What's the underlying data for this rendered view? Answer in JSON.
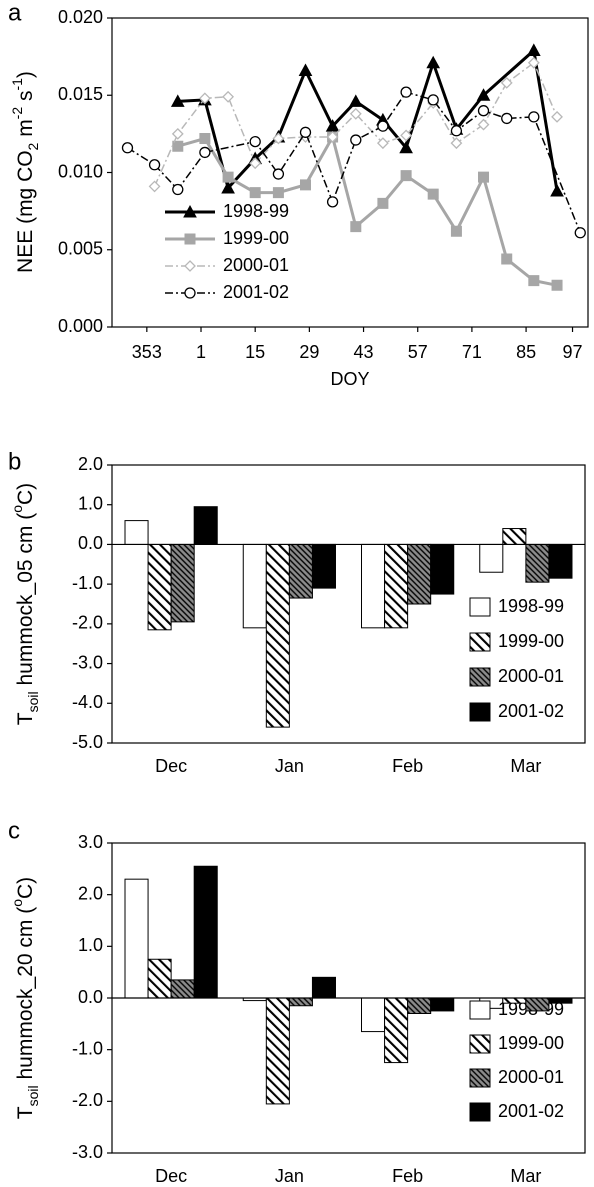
{
  "chart_data": [
    {
      "type": "line",
      "panel_label": "a",
      "ylabel": [
        "NEE (mg CO",
        "2",
        " m",
        "-2",
        " s",
        "-1",
        ")"
      ],
      "xlabel": "DOY",
      "xlim": [
        -22,
        101
      ],
      "xticks": [
        {
          "value": -13,
          "label": "353"
        },
        1,
        15,
        29,
        43,
        57,
        71,
        85,
        97
      ],
      "ylim": [
        0,
        0.02
      ],
      "yticks": [
        {
          "value": 0,
          "label": "0.000"
        },
        {
          "value": 0.005,
          "label": "0.005"
        },
        {
          "value": 0.01,
          "label": "0.010"
        },
        {
          "value": 0.015,
          "label": "0.015"
        },
        {
          "value": 0.02,
          "label": "0.020"
        }
      ],
      "series": [
        {
          "name": "1998-99",
          "color": "#000000",
          "width": 3,
          "dash": "none",
          "marker": "triangle",
          "x": [
            -5,
            2,
            8,
            15,
            21,
            28,
            35,
            41,
            48,
            54,
            61,
            67,
            74,
            87,
            93
          ],
          "values": [
            0.0146,
            0.0147,
            0.009,
            0.0109,
            0.0123,
            0.0166,
            0.013,
            0.0146,
            0.0134,
            0.0116,
            0.0171,
            0.0128,
            0.015,
            0.0179,
            0.0088
          ]
        },
        {
          "name": "1999-00",
          "color": "#a6a6a6",
          "width": 3,
          "dash": "none",
          "marker": "square",
          "x": [
            -5,
            2,
            8,
            15,
            21,
            28,
            35,
            41,
            48,
            54,
            61,
            67,
            74,
            80,
            87,
            93
          ],
          "values": [
            0.0117,
            0.0122,
            0.0097,
            0.0087,
            0.0087,
            0.0092,
            0.0123,
            0.0065,
            0.008,
            0.0098,
            0.0086,
            0.0062,
            0.0097,
            0.0044,
            0.003,
            0.0027
          ]
        },
        {
          "name": "2000-01",
          "color": "#b8b8b8",
          "width": 1.5,
          "dash": "8 3 2 3",
          "marker": "diamond",
          "x": [
            -11,
            -5,
            2,
            8,
            15,
            21,
            28,
            35,
            41,
            48,
            54,
            61,
            67,
            74,
            80,
            87,
            93
          ],
          "values": [
            0.0091,
            0.0125,
            0.0148,
            0.0149,
            0.0106,
            0.0122,
            0.0123,
            0.0123,
            0.0138,
            0.0119,
            0.0124,
            0.0145,
            0.0119,
            0.0131,
            0.0158,
            0.0171,
            0.0136
          ]
        },
        {
          "name": "2001-02",
          "color": "#000000",
          "width": 1.5,
          "dash": "8 3 2 3",
          "marker": "circle",
          "x": [
            -18,
            -11,
            -5,
            2,
            15,
            21,
            28,
            35,
            41,
            48,
            54,
            61,
            67,
            74,
            80,
            87,
            99
          ],
          "values": [
            0.0116,
            0.0105,
            0.0089,
            0.0113,
            0.012,
            0.0099,
            0.0126,
            0.0081,
            0.0121,
            0.013,
            0.0152,
            0.0147,
            0.0127,
            0.014,
            0.0135,
            0.0136,
            0.0061
          ]
        }
      ]
    },
    {
      "type": "bar",
      "panel_label": "b",
      "ylabel": [
        "T",
        "soil",
        " hummock_05 cm (",
        "o",
        "C)"
      ],
      "categories": [
        "Dec",
        "Jan",
        "Feb",
        "Mar"
      ],
      "ylim": [
        -5,
        2
      ],
      "yticks": [
        {
          "value": -5,
          "label": "-5.0"
        },
        {
          "value": -4,
          "label": "-4.0"
        },
        {
          "value": -3,
          "label": "-3.0"
        },
        {
          "value": -2,
          "label": "-2.0"
        },
        {
          "value": -1,
          "label": "-1.0"
        },
        {
          "value": 0,
          "label": "0.0"
        },
        {
          "value": 1,
          "label": "1.0"
        },
        {
          "value": 2,
          "label": "2.0"
        }
      ],
      "series": [
        {
          "name": "1998-99",
          "fill": "white",
          "values": [
            0.6,
            -2.1,
            -2.1,
            -0.7
          ]
        },
        {
          "name": "1999-00",
          "fill": "hatch",
          "values": [
            -2.15,
            -4.6,
            -2.1,
            0.4
          ]
        },
        {
          "name": "2000-01",
          "fill": "dense-hatch",
          "values": [
            -1.95,
            -1.35,
            -1.5,
            -0.95
          ]
        },
        {
          "name": "2001-02",
          "fill": "black",
          "values": [
            0.95,
            -1.1,
            -1.25,
            -0.85
          ]
        }
      ]
    },
    {
      "type": "bar",
      "panel_label": "c",
      "ylabel": [
        "T",
        "soil",
        " hummock_20 cm (",
        "o",
        "C)"
      ],
      "categories": [
        "Dec",
        "Jan",
        "Feb",
        "Mar"
      ],
      "ylim": [
        -3,
        3
      ],
      "yticks": [
        {
          "value": -3,
          "label": "-3.0"
        },
        {
          "value": -2,
          "label": "-2.0"
        },
        {
          "value": -1,
          "label": "-1.0"
        },
        {
          "value": 0,
          "label": "0.0"
        },
        {
          "value": 1,
          "label": "1.0"
        },
        {
          "value": 2,
          "label": "2.0"
        },
        {
          "value": 3,
          "label": "3.0"
        }
      ],
      "series": [
        {
          "name": "1998-99",
          "fill": "white",
          "values": [
            2.3,
            -0.05,
            -0.65,
            -0.2
          ]
        },
        {
          "name": "1999-00",
          "fill": "hatch",
          "values": [
            0.75,
            -2.05,
            -1.25,
            -0.1
          ]
        },
        {
          "name": "2000-01",
          "fill": "dense-hatch",
          "values": [
            0.35,
            -0.15,
            -0.3,
            -0.25
          ]
        },
        {
          "name": "2001-02",
          "fill": "black",
          "values": [
            2.55,
            0.4,
            -0.25,
            -0.1
          ]
        }
      ]
    }
  ]
}
